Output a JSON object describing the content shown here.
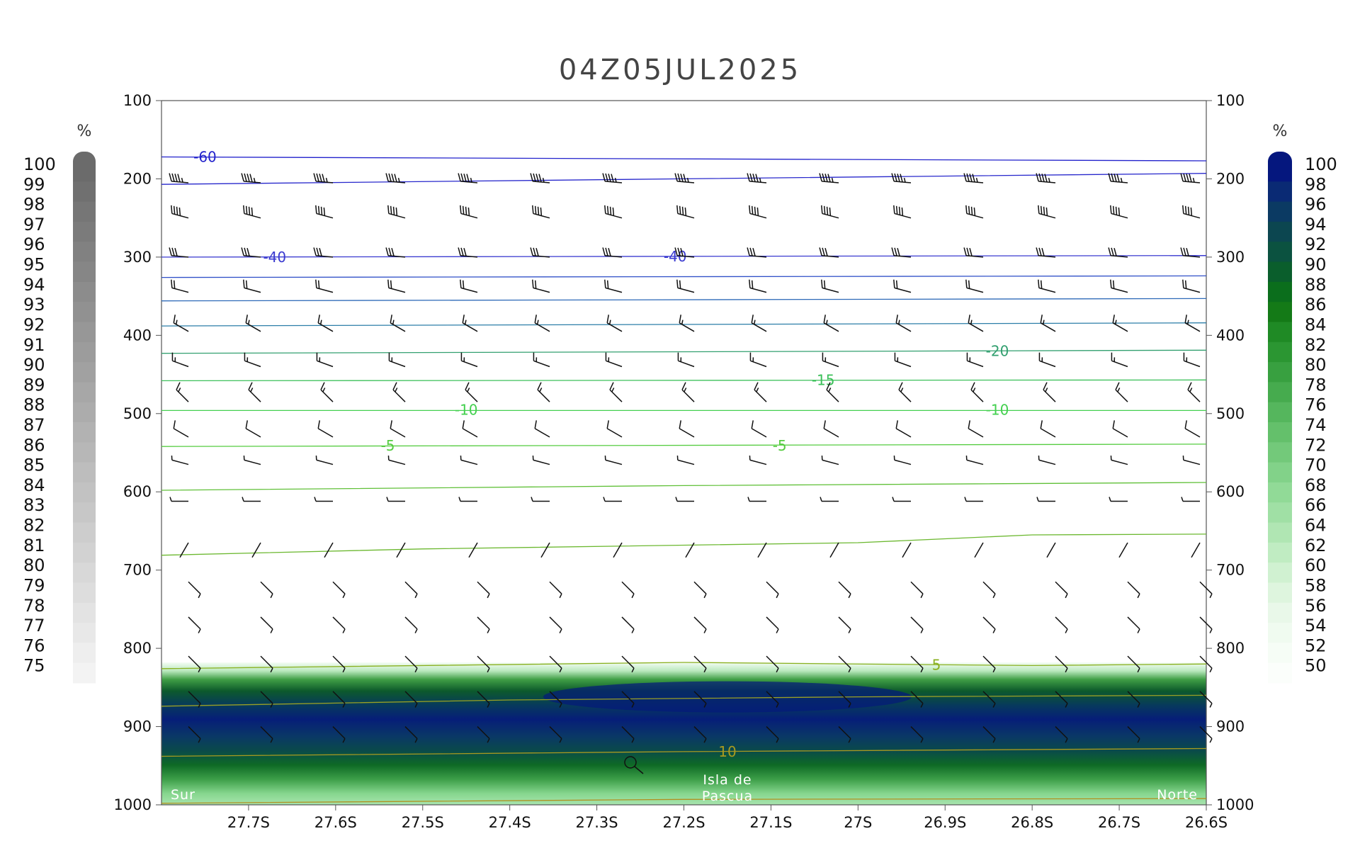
{
  "chart_data": {
    "type": "line",
    "title": "04Z05JUL2025",
    "x_axis": {
      "labels": [
        "27.7S",
        "27.6S",
        "27.5S",
        "27.4S",
        "27.3S",
        "27.2S",
        "27.1S",
        "27S",
        "26.9S",
        "26.8S",
        "26.7S",
        "26.6S"
      ],
      "x_values": [
        -27.7,
        -27.6,
        -27.5,
        -27.4,
        -27.3,
        -27.2,
        -27.1,
        -27.0,
        -26.9,
        -26.8,
        -26.7,
        -26.6
      ],
      "range": [
        -27.8,
        -26.6
      ]
    },
    "y_axis": {
      "scale": "linear_inverted",
      "range": [
        1000,
        100
      ],
      "ticks": [
        "100",
        "200",
        "300",
        "400",
        "500",
        "600",
        "700",
        "800",
        "900",
        "1000"
      ]
    },
    "annotations": {
      "left": "Sur",
      "center_line1": "Isla de",
      "center_line2": "Pascua",
      "right": "Norte"
    },
    "left_colorbar": {
      "unit": "%",
      "labels": [
        "100",
        "99",
        "98",
        "97",
        "96",
        "95",
        "94",
        "93",
        "92",
        "91",
        "90",
        "89",
        "88",
        "87",
        "86",
        "85",
        "84",
        "83",
        "82",
        "81",
        "80",
        "79",
        "78",
        "77",
        "76",
        "75"
      ],
      "color_top": "#6b6b6b",
      "color_bottom": "#f3f3f3"
    },
    "right_colorbar": {
      "unit": "%",
      "labels": [
        "100",
        "98",
        "96",
        "94",
        "92",
        "90",
        "88",
        "86",
        "84",
        "82",
        "80",
        "78",
        "76",
        "74",
        "72",
        "70",
        "68",
        "66",
        "64",
        "62",
        "60",
        "58",
        "56",
        "54",
        "52",
        "50"
      ],
      "colors": [
        "#05177e",
        "#0a2a74",
        "#0b3a63",
        "#0c4650",
        "#0b5240",
        "#0a5e2c",
        "#0b6e1c",
        "#147a17",
        "#1f8a25",
        "#2b9632",
        "#38a040",
        "#46ab4e",
        "#55b65d",
        "#64c06b",
        "#73c97a",
        "#82d289",
        "#91da97",
        "#a0e0a5",
        "#b0e6b3",
        "#c0ecc2",
        "#d0f1d1",
        "#def5de",
        "#e9f8e9",
        "#f0fbf0",
        "#f6fdf6",
        "#fbfefb"
      ]
    },
    "temperature_contours": [
      {
        "points": [
          [
            -27.8,
            172
          ],
          [
            -26.6,
            177
          ]
        ],
        "color": "#2222cc",
        "labels": [
          {
            "text": "-60",
            "at": [
              -27.75,
              172
            ]
          }
        ]
      },
      {
        "points": [
          [
            -27.8,
            207
          ],
          [
            -27.2,
            200
          ],
          [
            -26.6,
            193
          ]
        ],
        "color": "#2828cc",
        "labels": []
      },
      {
        "points": [
          [
            -27.8,
            300
          ],
          [
            -26.6,
            298
          ]
        ],
        "color": "#3a3ad0",
        "labels": [
          {
            "text": "-40",
            "at": [
              -27.67,
              300
            ]
          },
          {
            "text": "-40",
            "at": [
              -27.21,
              299
            ]
          }
        ]
      },
      {
        "points": [
          [
            -27.8,
            326
          ],
          [
            -26.6,
            324
          ]
        ],
        "color": "#3050c8",
        "labels": []
      },
      {
        "points": [
          [
            -27.8,
            356
          ],
          [
            -26.6,
            353
          ]
        ],
        "color": "#2e6ab8",
        "labels": []
      },
      {
        "points": [
          [
            -27.8,
            388
          ],
          [
            -26.6,
            384
          ]
        ],
        "color": "#2c7ea8",
        "labels": []
      },
      {
        "points": [
          [
            -27.8,
            423
          ],
          [
            -26.6,
            419
          ]
        ],
        "color": "#33a070",
        "labels": [
          {
            "text": "-20",
            "at": [
              -26.84,
              420
            ]
          }
        ]
      },
      {
        "points": [
          [
            -27.8,
            458
          ],
          [
            -26.6,
            457
          ]
        ],
        "color": "#3cc05a",
        "labels": [
          {
            "text": "-15",
            "at": [
              -27.04,
              457
            ]
          }
        ]
      },
      {
        "points": [
          [
            -27.8,
            496
          ],
          [
            -26.6,
            496
          ]
        ],
        "color": "#44d050",
        "labels": [
          {
            "text": "-10",
            "at": [
              -27.45,
              495
            ]
          },
          {
            "text": "-10",
            "at": [
              -26.84,
              495
            ]
          }
        ]
      },
      {
        "points": [
          [
            -27.8,
            542
          ],
          [
            -26.6,
            539
          ]
        ],
        "color": "#55cc40",
        "labels": [
          {
            "text": "-5",
            "at": [
              -27.54,
              541
            ]
          },
          {
            "text": "-5",
            "at": [
              -27.09,
              541
            ]
          }
        ]
      },
      {
        "points": [
          [
            -27.8,
            598
          ],
          [
            -27.2,
            592
          ],
          [
            -26.6,
            588
          ]
        ],
        "color": "#60c038",
        "labels": []
      },
      {
        "points": [
          [
            -27.8,
            681
          ],
          [
            -27.5,
            673
          ],
          [
            -27.0,
            665
          ],
          [
            -26.8,
            655
          ],
          [
            -26.6,
            654
          ]
        ],
        "color": "#6cb830",
        "labels": []
      },
      {
        "points": [
          [
            -27.8,
            826
          ],
          [
            -27.2,
            818
          ],
          [
            -26.8,
            822
          ],
          [
            -26.6,
            820
          ]
        ],
        "color": "#8ab020",
        "labels": [
          {
            "text": "5",
            "at": [
              -26.91,
              821
            ]
          }
        ]
      },
      {
        "points": [
          [
            -27.8,
            874
          ],
          [
            -27.4,
            866
          ],
          [
            -27.0,
            862
          ],
          [
            -26.6,
            860
          ]
        ],
        "color": "#99a025",
        "labels": []
      },
      {
        "points": [
          [
            -27.8,
            938
          ],
          [
            -27.2,
            932
          ],
          [
            -26.6,
            928
          ]
        ],
        "color": "#a89a20",
        "labels": [
          {
            "text": "10",
            "at": [
              -27.15,
              932
            ]
          }
        ]
      },
      {
        "points": [
          [
            -27.8,
            998
          ],
          [
            -27.2,
            993
          ],
          [
            -26.6,
            992
          ]
        ],
        "color": "#b09020",
        "labels": []
      }
    ],
    "wind_rows": [
      {
        "p": 205,
        "dir": 275,
        "speed": 45
      },
      {
        "p": 250,
        "dir": 285,
        "speed": 40
      },
      {
        "p": 300,
        "dir": 275,
        "speed": 30
      },
      {
        "p": 345,
        "dir": 285,
        "speed": 20
      },
      {
        "p": 395,
        "dir": 300,
        "speed": 15
      },
      {
        "p": 440,
        "dir": 290,
        "speed": 15
      },
      {
        "p": 485,
        "dir": 315,
        "speed": 15
      },
      {
        "p": 530,
        "dir": 300,
        "speed": 10
      },
      {
        "p": 565,
        "dir": 285,
        "speed": 5
      },
      {
        "p": 612,
        "dir": 270,
        "speed": 5
      },
      {
        "p": 665,
        "dir": 210,
        "speed": 0
      },
      {
        "p": 715,
        "dir": 135,
        "speed": 5
      },
      {
        "p": 760,
        "dir": 135,
        "speed": 5
      },
      {
        "p": 810,
        "dir": 135,
        "speed": 5
      },
      {
        "p": 855,
        "dir": 135,
        "speed": 5
      },
      {
        "p": 900,
        "dir": 135,
        "speed": 5
      }
    ]
  }
}
